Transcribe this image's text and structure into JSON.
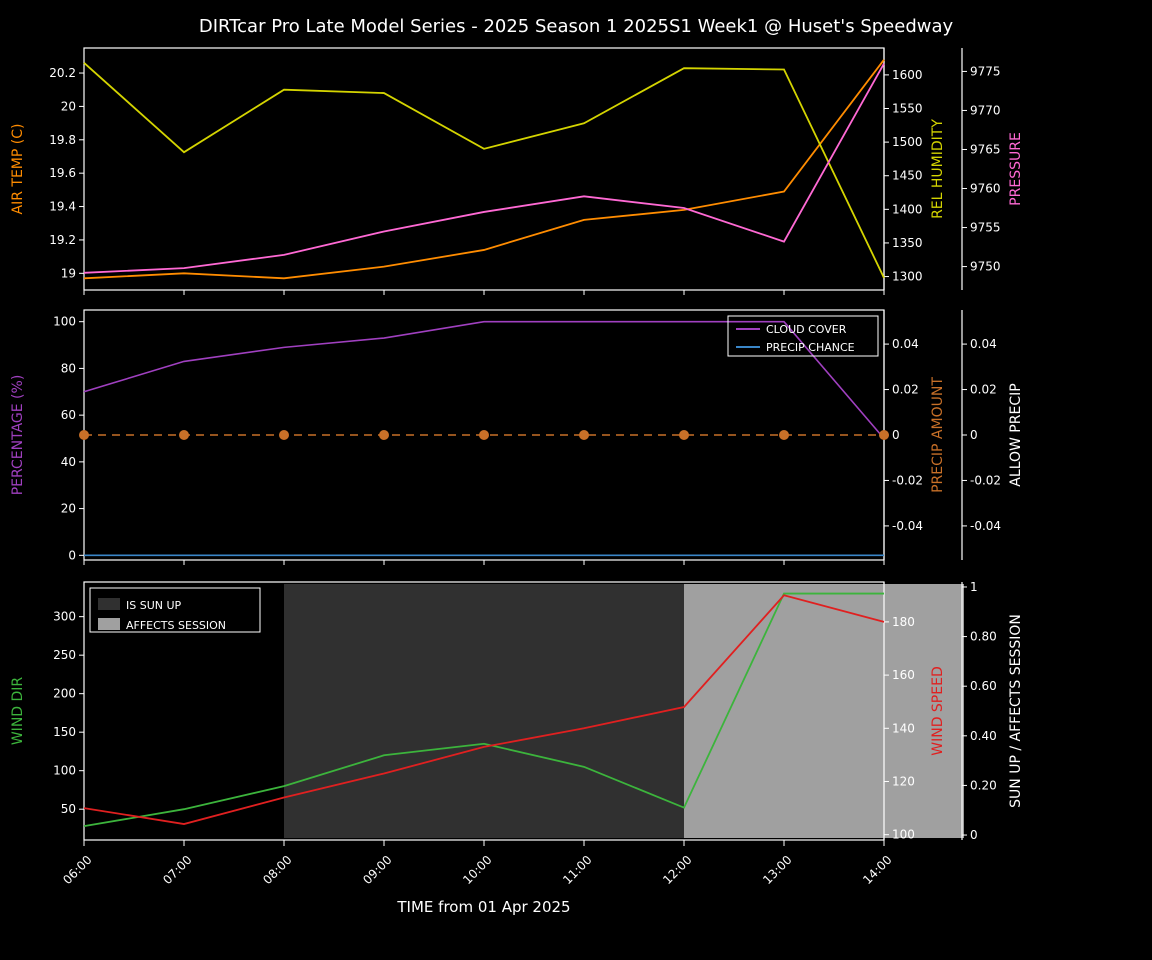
{
  "title": "DIRTcar Pro Late Model Series - 2025 Season 1 2025S1 Week1 @ Huset's Speedway",
  "title_fontsize": 18,
  "title_color": "#ffffff",
  "background_color": "#000000",
  "panel_facecolor": "#000000",
  "panel_edgecolor": "#ffffff",
  "panel_edgewidth": 1.2,
  "figure_width": 1152,
  "figure_height": 960,
  "xaxis": {
    "label": "TIME from 01 Apr 2025",
    "label_color": "#ffffff",
    "label_fontsize": 15,
    "tick_labels": [
      "06:00",
      "07:00",
      "08:00",
      "09:00",
      "10:00",
      "11:00",
      "12:00",
      "13:00",
      "14:00"
    ],
    "tick_rotation": 45,
    "tick_color": "#ffffff",
    "tick_fontsize": 12
  },
  "panel1": {
    "air_temp": {
      "label": "AIR TEMP (C)",
      "color": "#ff8c00",
      "values": [
        18.97,
        19.0,
        18.97,
        19.04,
        19.14,
        19.32,
        19.38,
        19.49,
        20.28
      ],
      "ylim": [
        18.9,
        20.35
      ],
      "ticks": [
        19.0,
        19.2,
        19.4,
        19.6,
        19.8,
        20.0,
        20.2
      ],
      "linewidth": 1.8
    },
    "rel_humidity": {
      "label": "REL HUMIDITY",
      "color": "#d4d400",
      "values": [
        1618,
        1485,
        1578,
        1573,
        1490,
        1528,
        1610,
        1608,
        1298
      ],
      "ylim": [
        1280,
        1640
      ],
      "ticks": [
        1300,
        1350,
        1400,
        1450,
        1500,
        1550,
        1600
      ],
      "linewidth": 1.8
    },
    "pressure": {
      "label": "PRESSURE",
      "color": "#ff69d4",
      "values": [
        9749.2,
        9749.8,
        9751.5,
        9754.5,
        9757.0,
        9759.0,
        9757.5,
        9753.2,
        9776.0
      ],
      "ylim": [
        9747,
        9778
      ],
      "ticks": [
        9750,
        9755,
        9760,
        9765,
        9770,
        9775
      ],
      "linewidth": 1.8
    }
  },
  "panel2": {
    "percentage": {
      "label": "PERCENTAGE (%)",
      "color": "#a040c0",
      "ylim": [
        -2,
        105
      ],
      "ticks": [
        0,
        20,
        40,
        60,
        80,
        100
      ]
    },
    "cloud_cover": {
      "label": "CLOUD COVER",
      "color": "#a040c0",
      "values": [
        70,
        83,
        89,
        93,
        100,
        100,
        100,
        100,
        50
      ],
      "linewidth": 1.6
    },
    "precip_chance": {
      "label": "PRECIP CHANCE",
      "color": "#3a86c8",
      "values": [
        0,
        0,
        0,
        0,
        0,
        0,
        0,
        0,
        0
      ],
      "linewidth": 1.6
    },
    "precip_amount": {
      "label": "PRECIP AMOUNT",
      "color": "#c87028",
      "values": [
        0,
        0,
        0,
        0,
        0,
        0,
        0,
        0,
        0
      ],
      "ylim": [
        -0.055,
        0.055
      ],
      "ticks": [
        -0.04,
        -0.02,
        0.0,
        0.02,
        0.04
      ],
      "marker": "circle",
      "marker_size": 5,
      "dash": "8,6",
      "linewidth": 1.6
    },
    "allow_precip": {
      "label": "ALLOW PRECIP",
      "color": "#ffffff",
      "ylim": [
        -0.055,
        0.055
      ],
      "ticks": [
        -0.04,
        -0.02,
        0.0,
        0.02,
        0.04
      ]
    },
    "legend": {
      "items": [
        "CLOUD COVER",
        "PRECIP CHANCE"
      ],
      "colors": [
        "#a040c0",
        "#3a86c8"
      ],
      "loc": "upper right",
      "edgecolor": "#ffffff",
      "textcolor": "#ffffff",
      "fontsize": 11
    }
  },
  "panel3": {
    "wind_dir": {
      "label": "WIND DIR",
      "color": "#3cb43c",
      "values": [
        28,
        50,
        80,
        120,
        135,
        105,
        52,
        330,
        330
      ],
      "ylim": [
        10,
        345
      ],
      "ticks": [
        50,
        100,
        150,
        200,
        250,
        300
      ],
      "linewidth": 1.8
    },
    "wind_speed": {
      "label": "WIND SPEED",
      "color": "#e02020",
      "values": [
        110,
        104,
        114,
        123,
        133,
        140,
        148,
        190,
        180
      ],
      "ylim": [
        98,
        195
      ],
      "ticks": [
        100,
        120,
        140,
        160,
        180
      ],
      "linewidth": 1.8
    },
    "sun_affects": {
      "label": "SUN UP / AFFECTS SESSION",
      "color": "#ffffff",
      "ylim": [
        -0.02,
        1.02
      ],
      "ticks": [
        0.0,
        0.2,
        0.4,
        0.6,
        0.8,
        1.0
      ]
    },
    "is_sun_up": {
      "label": "IS SUN UP",
      "color": "#303030",
      "start_index": 2,
      "end_index": 8.8
    },
    "affects_session": {
      "label": "AFFECTS SESSION",
      "color": "#a0a0a0",
      "start_index": 6,
      "end_index": 8.8
    },
    "legend": {
      "items": [
        "IS SUN UP",
        "AFFECTS SESSION"
      ],
      "colors": [
        "#303030",
        "#a0a0a0"
      ],
      "loc": "upper left",
      "edgecolor": "#ffffff",
      "textcolor": "#ffffff",
      "fontsize": 11
    }
  },
  "axis_label_fontsize": 14,
  "tick_label_fontsize": 12
}
